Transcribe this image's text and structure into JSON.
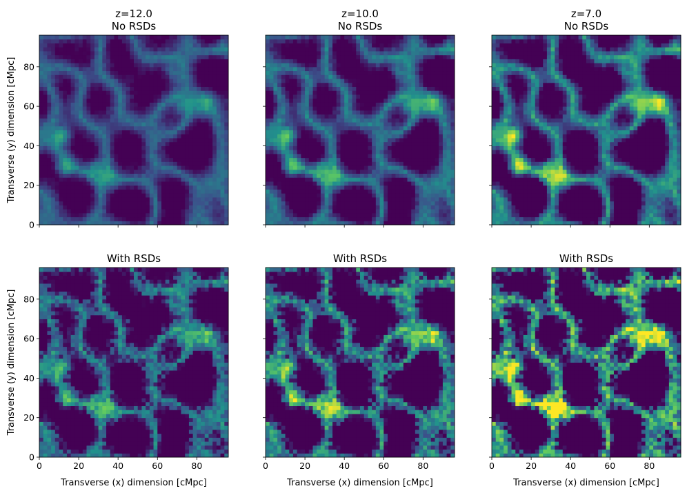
{
  "chart_data": {
    "type": "heatmap",
    "grid_cells": 48,
    "colormap": "viridis",
    "colors": [
      "#440154",
      "#3b528b",
      "#21918c",
      "#5ec962",
      "#fde725"
    ],
    "x_ticks": [
      0,
      20,
      40,
      60,
      80
    ],
    "y_ticks": [
      0,
      20,
      40,
      60,
      80
    ],
    "xlim": [
      0,
      96
    ],
    "ylim": [
      0,
      96
    ],
    "xlabel": "Transverse (x) dimension [cMpc]",
    "ylabel": "Transverse (y) dimension [cMpc]",
    "panels": [
      {
        "title": [
          "z=12.0",
          "No RSDs"
        ],
        "row": 0,
        "col": 0,
        "contrast": 0.55,
        "rsd": 0
      },
      {
        "title": [
          "z=10.0",
          "No RSDs"
        ],
        "row": 0,
        "col": 1,
        "contrast": 0.75,
        "rsd": 0
      },
      {
        "title": [
          "z=7.0",
          "No RSDs"
        ],
        "row": 0,
        "col": 2,
        "contrast": 1.05,
        "rsd": 0
      },
      {
        "title": [
          "With RSDs"
        ],
        "row": 1,
        "col": 0,
        "contrast": 0.7,
        "rsd": 1
      },
      {
        "title": [
          "With RSDs"
        ],
        "row": 1,
        "col": 1,
        "contrast": 0.95,
        "rsd": 1
      },
      {
        "title": [
          "With RSDs"
        ],
        "row": 1,
        "col": 2,
        "contrast": 1.3,
        "rsd": 1
      }
    ]
  }
}
